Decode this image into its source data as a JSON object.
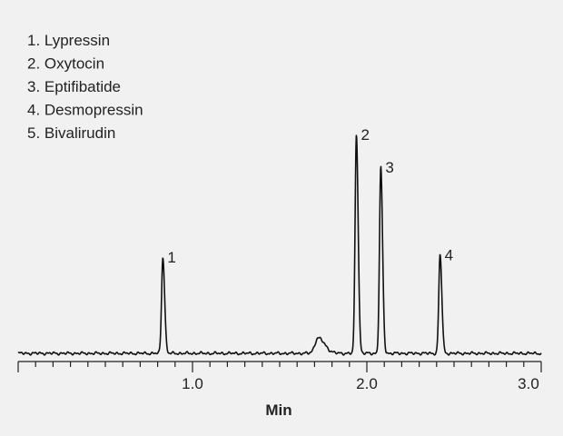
{
  "chart_data": {
    "type": "line",
    "title": "",
    "xlabel": "Min",
    "ylabel": "",
    "xlim": [
      0.0,
      3.0
    ],
    "ylim": [
      0,
      100
    ],
    "grid": false,
    "legend_position": "top-left",
    "legend": [
      "1. Lypressin",
      "2. Oxytocin",
      "3. Eptifibatide",
      "4. Desmopressin",
      "5. Bivalirudin"
    ],
    "x_ticks": [
      {
        "value": 1.0,
        "label": "1.0"
      },
      {
        "value": 2.0,
        "label": "2.0"
      },
      {
        "value": 3.0,
        "label": "3.0"
      }
    ],
    "minor_tick_step": 0.1,
    "peaks": [
      {
        "label": "1",
        "time": 0.83,
        "height": 44
      },
      {
        "label": "2",
        "time": 1.94,
        "height": 100
      },
      {
        "label": "3",
        "time": 2.08,
        "height": 85
      },
      {
        "label": "4",
        "time": 2.42,
        "height": 45
      }
    ],
    "minor_peaks": [
      {
        "time": 1.72,
        "height": 7
      }
    ],
    "line_color": "#111111"
  }
}
